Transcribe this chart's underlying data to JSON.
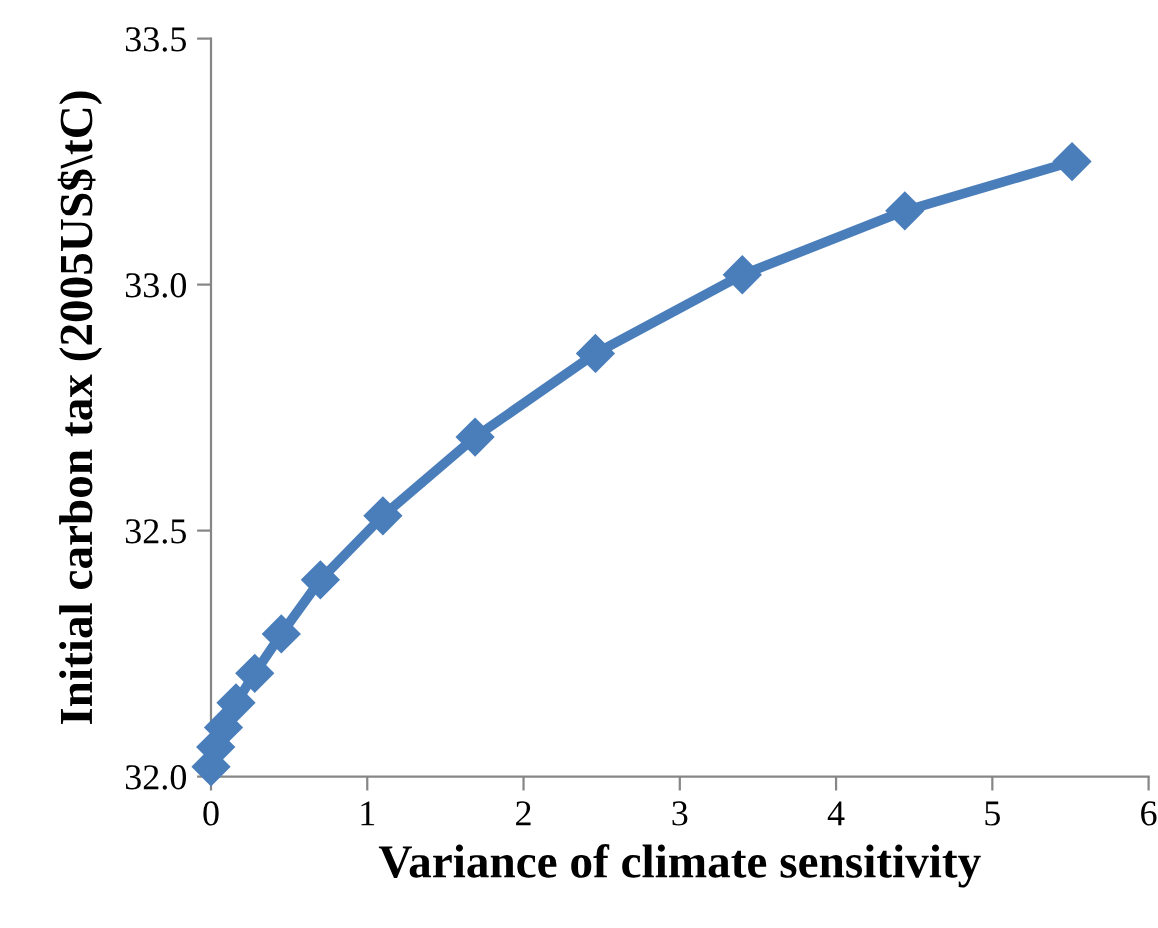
{
  "chart_data": {
    "type": "line",
    "xlabel": "Variance of climate sensitivity",
    "ylabel": "Initial carbon tax (2005US$\\tC)",
    "x": [
      0.0,
      0.03,
      0.08,
      0.16,
      0.28,
      0.45,
      0.7,
      1.1,
      1.69,
      2.46,
      3.4,
      4.44,
      5.51
    ],
    "series": [
      {
        "color": "#4a7ebb",
        "values": [
          32.02,
          32.06,
          32.1,
          32.15,
          32.21,
          32.29,
          32.4,
          32.53,
          32.69,
          32.86,
          33.02,
          33.15,
          33.25
        ]
      }
    ],
    "xlim": [
      0,
      6
    ],
    "xticks": [
      0,
      1,
      2,
      3,
      4,
      5,
      6
    ],
    "ylim": [
      32.0,
      33.5
    ],
    "yticks": [
      {
        "value": 32.0,
        "label": "32.0"
      },
      {
        "value": 32.5,
        "label": "32.5"
      },
      {
        "value": 33.0,
        "label": "33.0"
      },
      {
        "value": 33.5,
        "label": "33.5"
      }
    ],
    "marker": "diamond",
    "line_style": "solid",
    "grid": false,
    "legend": false
  }
}
